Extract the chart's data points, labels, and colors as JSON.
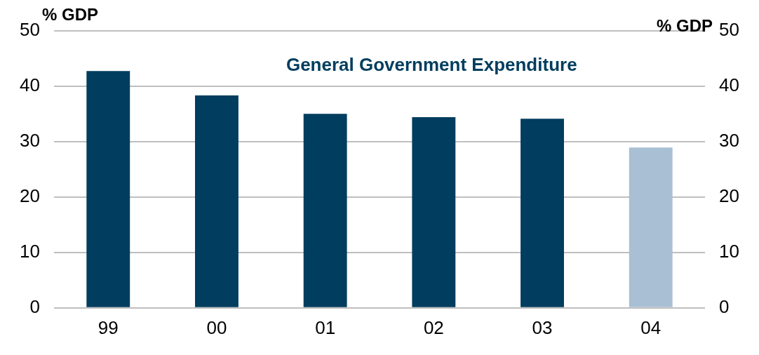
{
  "chart_data": {
    "type": "bar",
    "title": "General Government Expenditure",
    "ylabel": "% GDP",
    "y2label": "% GDP",
    "categories": [
      "99",
      "00",
      "01",
      "02",
      "03",
      "04"
    ],
    "values": [
      42.7,
      38.3,
      35.0,
      34.4,
      34.1,
      28.9
    ],
    "colors": [
      "#003d5e",
      "#003d5e",
      "#003d5e",
      "#003d5e",
      "#003d5e",
      "#a9bfd3"
    ],
    "ylim": [
      0,
      50
    ],
    "yticks": [
      0,
      10,
      20,
      30,
      40,
      50
    ],
    "y2lim": [
      0,
      50
    ],
    "y2ticks": [
      0,
      10,
      20,
      30,
      40,
      50
    ],
    "grid": "y",
    "legend": false
  }
}
